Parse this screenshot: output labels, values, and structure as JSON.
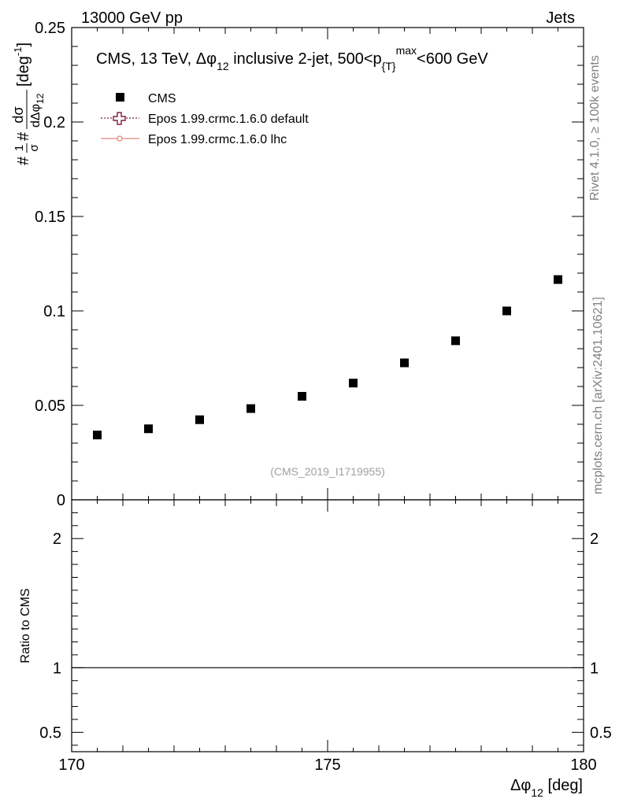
{
  "header": {
    "left": "13000 GeV pp",
    "right": "Jets"
  },
  "title": {
    "prefix": "CMS, 13 TeV, ",
    "var_sym": "Δφ",
    "var_sub": "12",
    "mid": " inclusive 2-jet, 500<p",
    "pt_sub": "{T}",
    "pt_sup": "max",
    "suffix": "<600 GeV"
  },
  "legend": [
    {
      "name": "CMS",
      "color": "#000000",
      "marker": "square"
    },
    {
      "name": "Epos 1.99.crmc.1.6.0 default",
      "color": "#7f1f3f",
      "marker": "open-cross",
      "line": "dotted"
    },
    {
      "name": "Epos 1.99.crmc.1.6.0 lhc",
      "color": "#e8877f",
      "marker": "circle",
      "line": "solid"
    }
  ],
  "side_labels": {
    "rivet": "Rivet 4.1.0, ≥ 100k events",
    "mcplots": "mcplots.cern.ch [arXiv:2401.10621]"
  },
  "analysis_id": "(CMS_2019_I1719955)",
  "ylabel_main": {
    "text1": "#",
    "frac1_num": "1",
    "frac1_den": "σ",
    "text2": "#",
    "frac2_num": "dσ",
    "frac2_den": "dΔφ",
    "frac2_den_sub": "12",
    "unit": "[deg",
    "unit_sup": "-1",
    "unit_end": "]"
  },
  "ylabel_ratio": "Ratio to CMS",
  "xlabel": {
    "sym": "Δφ",
    "sub": "12",
    "unit": " [deg]"
  },
  "chart_data": [
    {
      "type": "scatter",
      "panel": "main",
      "xlim": [
        170,
        180
      ],
      "ylim": [
        0,
        0.25
      ],
      "yticks": [
        {
          "v": 0,
          "label": "0"
        },
        {
          "v": 0.05,
          "label": "0.05"
        },
        {
          "v": 0.1,
          "label": "0.1"
        },
        {
          "v": 0.15,
          "label": "0.15"
        },
        {
          "v": 0.2,
          "label": "0.2"
        },
        {
          "v": 0.25,
          "label": "0.25"
        }
      ],
      "series": [
        {
          "name": "CMS",
          "x": [
            170.5,
            171.5,
            172.5,
            173.5,
            174.5,
            175.5,
            176.5,
            177.5,
            178.5,
            179.5
          ],
          "y": [
            0.0343,
            0.0376,
            0.0424,
            0.0483,
            0.0548,
            0.0618,
            0.0725,
            0.0842,
            0.1,
            0.1166
          ]
        }
      ]
    },
    {
      "type": "line",
      "panel": "ratio",
      "xlim": [
        170,
        180
      ],
      "ylim": [
        0.35,
        2.3
      ],
      "xticks": [
        {
          "v": 170,
          "label": "170"
        },
        {
          "v": 175,
          "label": "175"
        },
        {
          "v": 180,
          "label": "180"
        }
      ],
      "yticks": [
        {
          "v": 0.5,
          "label": "0.5"
        },
        {
          "v": 1,
          "label": "1"
        },
        {
          "v": 2,
          "label": "2"
        }
      ],
      "reference": 1
    }
  ]
}
